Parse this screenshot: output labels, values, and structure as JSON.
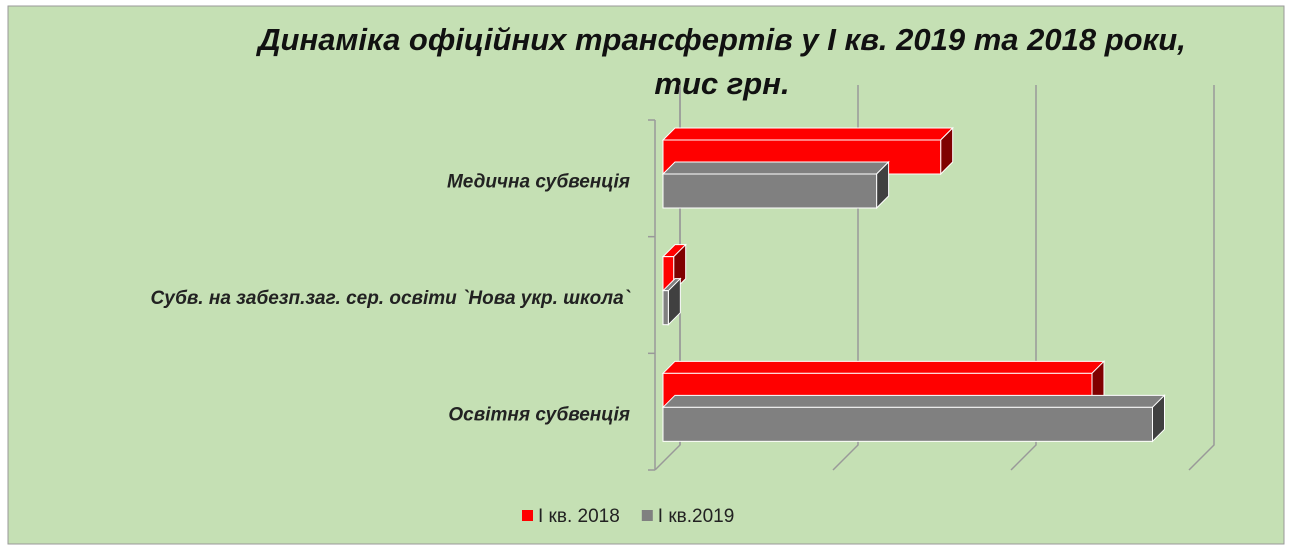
{
  "chart_data": {
    "type": "bar3d_horizontal",
    "title": [
      "Динаміка офіційних трансфертів  у І кв. 2019 та 2018 роки,",
      "тис грн."
    ],
    "categories": [
      "Освітня субвенція",
      "Субв. на забезп.заг. сер. освіти `Нова укр. школа`",
      "Медична субвенція"
    ],
    "series": [
      {
        "name": "І кв. 2018",
        "color": "#ff0000",
        "values": [
          2.41,
          0.06,
          1.56
        ]
      },
      {
        "name": "І кв.2019",
        "color": "#808080",
        "values": [
          2.75,
          0.03,
          1.2
        ]
      }
    ],
    "xlim": [
      0,
      3
    ],
    "xticks": [
      0,
      1,
      2,
      3
    ],
    "grid": true,
    "legend": "bottom"
  }
}
